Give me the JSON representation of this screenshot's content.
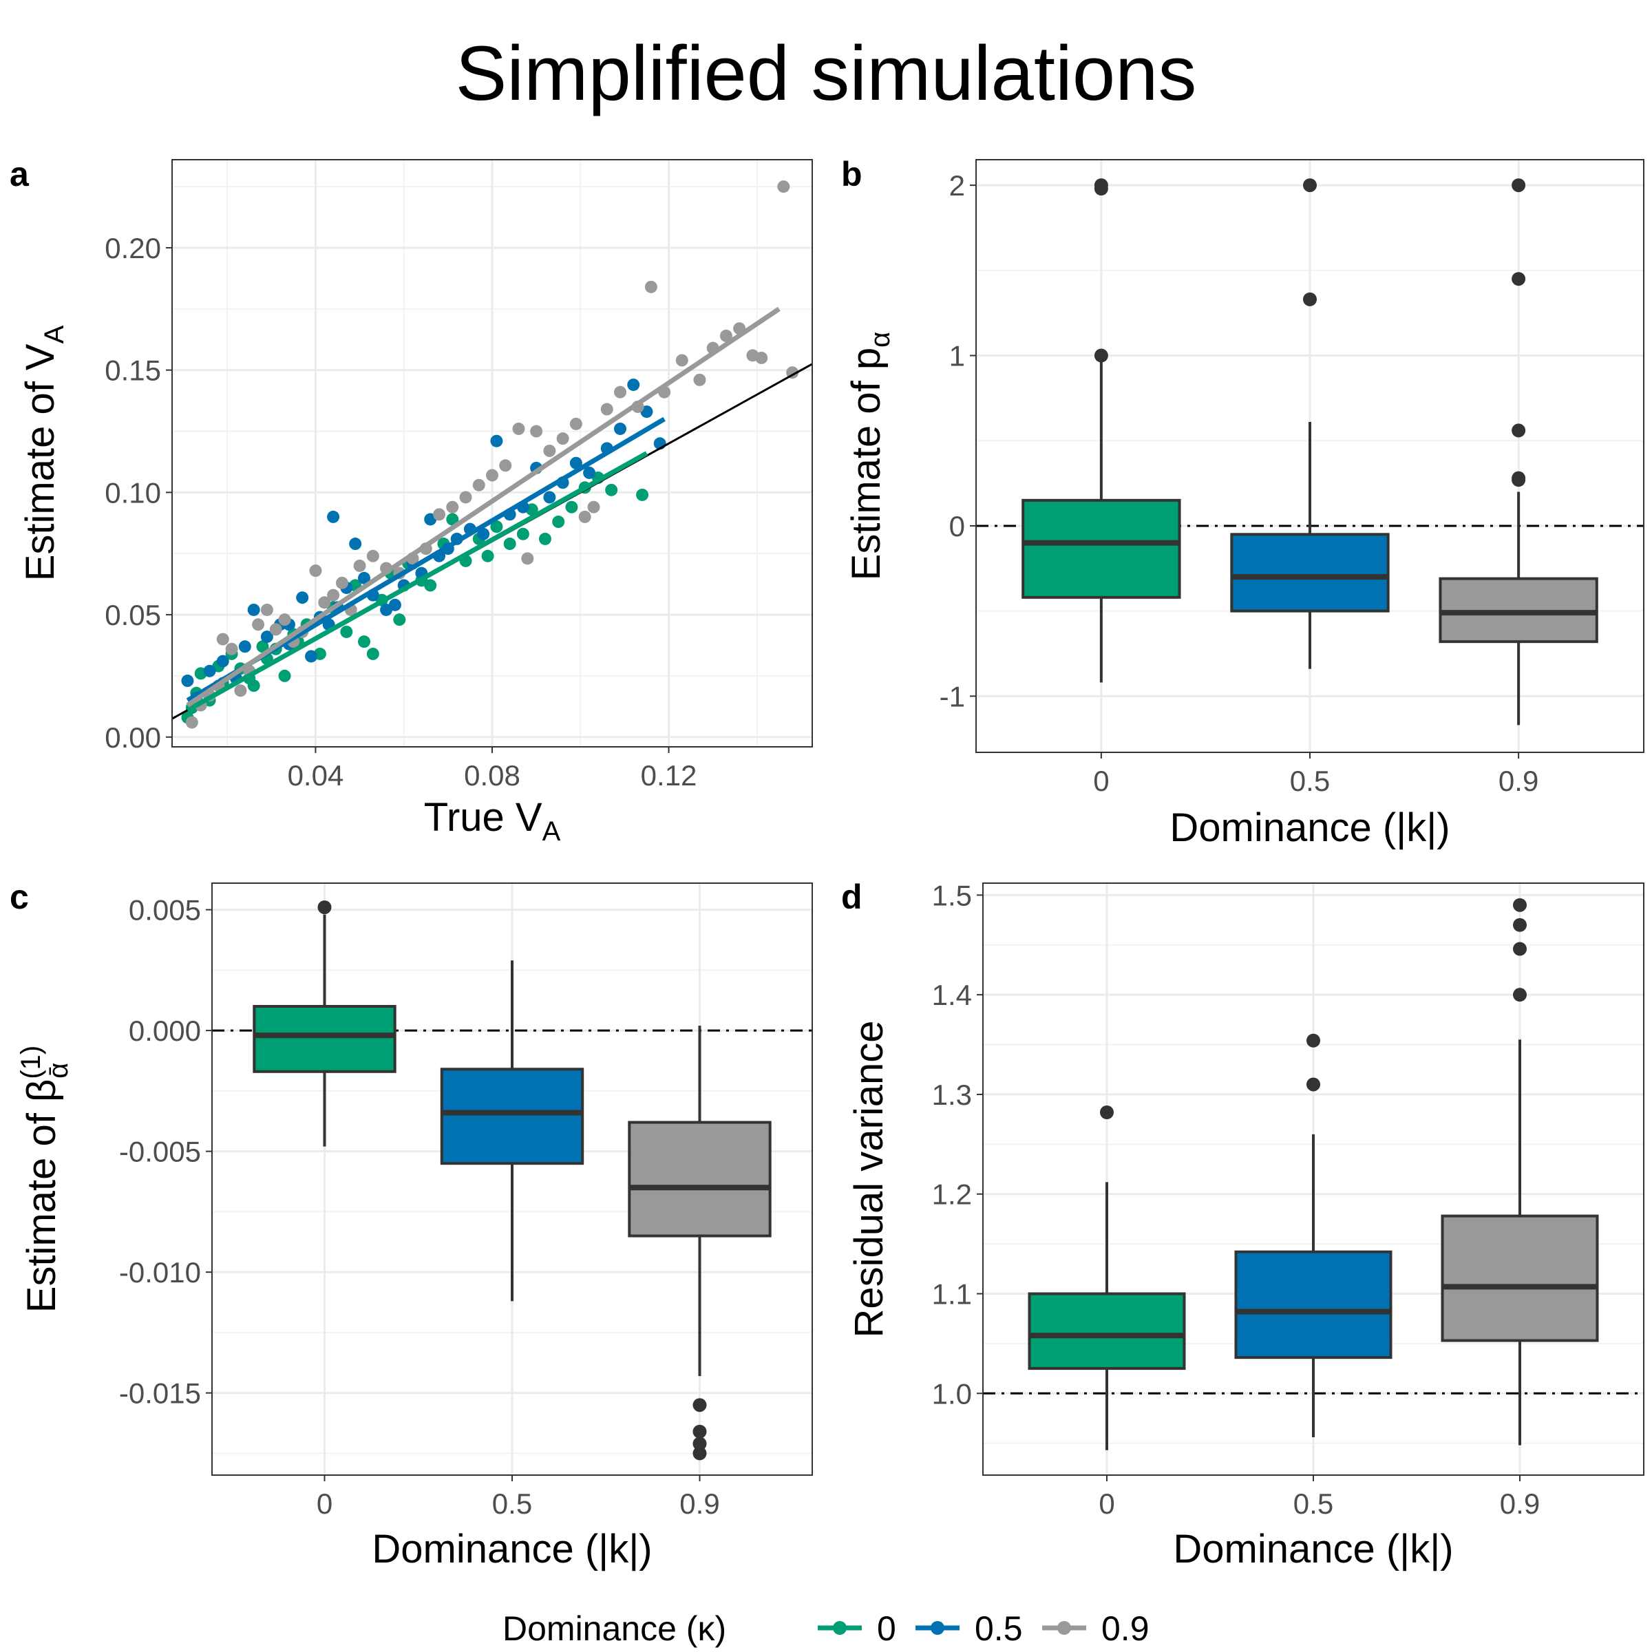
{
  "figure": {
    "title": "Simplified simulations",
    "colors": {
      "k0": "#009E73",
      "k05": "#0072B2",
      "k09": "#999999",
      "outlier": "#333333",
      "box_line": "#333333"
    },
    "legend": {
      "title": "Dominance (κ)",
      "items": [
        {
          "label": "0",
          "color": "#009E73"
        },
        {
          "label": "0.5",
          "color": "#0072B2"
        },
        {
          "label": "0.9",
          "color": "#999999"
        }
      ]
    }
  },
  "chart_data": [
    {
      "panel": "a",
      "type": "scatter",
      "xlabel": "True V",
      "xlabel_sub": "A",
      "ylabel": "Estimate of V",
      "ylabel_sub": "A",
      "xlim": [
        0.0075,
        0.1525
      ],
      "ylim": [
        -0.004,
        0.236
      ],
      "xticks": [
        0.04,
        0.08,
        0.12
      ],
      "xtick_labels": [
        "0.04",
        "0.08",
        "0.12"
      ],
      "yticks": [
        0.0,
        0.05,
        0.1,
        0.15,
        0.2
      ],
      "ytick_labels": [
        "0.00",
        "0.05",
        "0.10",
        "0.15",
        "0.20"
      ],
      "identity_line": {
        "slope": 1,
        "intercept": 0
      },
      "series": [
        {
          "name": "0",
          "color": "#009E73",
          "fit": {
            "x": [
              0.011,
              0.115
            ],
            "y": [
              0.011,
              0.116
            ]
          },
          "points": [
            [
              0.011,
              0.008
            ],
            [
              0.012,
              0.012
            ],
            [
              0.013,
              0.018
            ],
            [
              0.014,
              0.026
            ],
            [
              0.016,
              0.015
            ],
            [
              0.018,
              0.029
            ],
            [
              0.019,
              0.022
            ],
            [
              0.021,
              0.034
            ],
            [
              0.023,
              0.028
            ],
            [
              0.025,
              0.024
            ],
            [
              0.026,
              0.021
            ],
            [
              0.028,
              0.037
            ],
            [
              0.029,
              0.032
            ],
            [
              0.031,
              0.036
            ],
            [
              0.033,
              0.025
            ],
            [
              0.035,
              0.042
            ],
            [
              0.036,
              0.039
            ],
            [
              0.038,
              0.046
            ],
            [
              0.041,
              0.034
            ],
            [
              0.044,
              0.053
            ],
            [
              0.047,
              0.043
            ],
            [
              0.049,
              0.062
            ],
            [
              0.051,
              0.039
            ],
            [
              0.053,
              0.034
            ],
            [
              0.055,
              0.056
            ],
            [
              0.057,
              0.067
            ],
            [
              0.059,
              0.048
            ],
            [
              0.061,
              0.071
            ],
            [
              0.064,
              0.064
            ],
            [
              0.066,
              0.062
            ],
            [
              0.069,
              0.079
            ],
            [
              0.071,
              0.089
            ],
            [
              0.074,
              0.072
            ],
            [
              0.077,
              0.081
            ],
            [
              0.079,
              0.074
            ],
            [
              0.081,
              0.086
            ],
            [
              0.084,
              0.079
            ],
            [
              0.087,
              0.083
            ],
            [
              0.089,
              0.093
            ],
            [
              0.092,
              0.081
            ],
            [
              0.095,
              0.088
            ],
            [
              0.098,
              0.094
            ],
            [
              0.101,
              0.102
            ],
            [
              0.104,
              0.106
            ],
            [
              0.107,
              0.101
            ],
            [
              0.114,
              0.099
            ]
          ]
        },
        {
          "name": "0.5",
          "color": "#0072B2",
          "fit": {
            "x": [
              0.011,
              0.119
            ],
            "y": [
              0.015,
              0.13
            ]
          },
          "points": [
            [
              0.011,
              0.023
            ],
            [
              0.013,
              0.016
            ],
            [
              0.016,
              0.027
            ],
            [
              0.019,
              0.031
            ],
            [
              0.022,
              0.024
            ],
            [
              0.024,
              0.037
            ],
            [
              0.026,
              0.052
            ],
            [
              0.029,
              0.041
            ],
            [
              0.032,
              0.046
            ],
            [
              0.034,
              0.038
            ],
            [
              0.037,
              0.057
            ],
            [
              0.039,
              0.033
            ],
            [
              0.041,
              0.049
            ],
            [
              0.043,
              0.046
            ],
            [
              0.045,
              0.053
            ],
            [
              0.047,
              0.061
            ],
            [
              0.049,
              0.079
            ],
            [
              0.051,
              0.065
            ],
            [
              0.053,
              0.058
            ],
            [
              0.056,
              0.052
            ],
            [
              0.058,
              0.054
            ],
            [
              0.06,
              0.062
            ],
            [
              0.062,
              0.071
            ],
            [
              0.064,
              0.067
            ],
            [
              0.066,
              0.089
            ],
            [
              0.068,
              0.074
            ],
            [
              0.07,
              0.077
            ],
            [
              0.072,
              0.081
            ],
            [
              0.075,
              0.085
            ],
            [
              0.078,
              0.083
            ],
            [
              0.081,
              0.121
            ],
            [
              0.084,
              0.091
            ],
            [
              0.087,
              0.094
            ],
            [
              0.09,
              0.11
            ],
            [
              0.093,
              0.098
            ],
            [
              0.096,
              0.104
            ],
            [
              0.099,
              0.112
            ],
            [
              0.102,
              0.108
            ],
            [
              0.106,
              0.118
            ],
            [
              0.109,
              0.126
            ],
            [
              0.112,
              0.144
            ],
            [
              0.115,
              0.133
            ],
            [
              0.118,
              0.12
            ],
            [
              0.044,
              0.09
            ],
            [
              0.034,
              0.046
            ]
          ]
        },
        {
          "name": "0.9",
          "color": "#999999",
          "fit": {
            "x": [
              0.011,
              0.145
            ],
            "y": [
              0.013,
              0.175
            ]
          },
          "points": [
            [
              0.012,
              0.006
            ],
            [
              0.014,
              0.013
            ],
            [
              0.016,
              0.017
            ],
            [
              0.018,
              0.021
            ],
            [
              0.019,
              0.04
            ],
            [
              0.021,
              0.036
            ],
            [
              0.023,
              0.019
            ],
            [
              0.025,
              0.027
            ],
            [
              0.027,
              0.046
            ],
            [
              0.029,
              0.052
            ],
            [
              0.031,
              0.044
            ],
            [
              0.033,
              0.048
            ],
            [
              0.035,
              0.039
            ],
            [
              0.037,
              0.043
            ],
            [
              0.04,
              0.068
            ],
            [
              0.042,
              0.055
            ],
            [
              0.044,
              0.058
            ],
            [
              0.046,
              0.063
            ],
            [
              0.048,
              0.052
            ],
            [
              0.05,
              0.07
            ],
            [
              0.053,
              0.074
            ],
            [
              0.056,
              0.069
            ],
            [
              0.059,
              0.067
            ],
            [
              0.062,
              0.073
            ],
            [
              0.065,
              0.077
            ],
            [
              0.068,
              0.091
            ],
            [
              0.071,
              0.094
            ],
            [
              0.074,
              0.098
            ],
            [
              0.077,
              0.103
            ],
            [
              0.08,
              0.107
            ],
            [
              0.083,
              0.111
            ],
            [
              0.086,
              0.126
            ],
            [
              0.088,
              0.073
            ],
            [
              0.09,
              0.125
            ],
            [
              0.093,
              0.117
            ],
            [
              0.096,
              0.122
            ],
            [
              0.099,
              0.128
            ],
            [
              0.101,
              0.09
            ],
            [
              0.103,
              0.094
            ],
            [
              0.106,
              0.134
            ],
            [
              0.109,
              0.141
            ],
            [
              0.113,
              0.135
            ],
            [
              0.116,
              0.184
            ],
            [
              0.119,
              0.141
            ],
            [
              0.123,
              0.154
            ],
            [
              0.127,
              0.146
            ],
            [
              0.13,
              0.159
            ],
            [
              0.133,
              0.164
            ],
            [
              0.136,
              0.167
            ],
            [
              0.139,
              0.156
            ],
            [
              0.141,
              0.155
            ],
            [
              0.146,
              0.225
            ],
            [
              0.148,
              0.149
            ]
          ]
        }
      ]
    },
    {
      "panel": "b",
      "type": "box",
      "xlabel": "Dominance (|k|)",
      "ylabel": "Estimate of p",
      "ylabel_sub": "α",
      "ylim": [
        -1.33,
        2.15
      ],
      "yticks": [
        -1,
        0,
        1,
        2
      ],
      "ytick_labels": [
        "-1",
        "0",
        "1",
        "2"
      ],
      "reference_line": 0,
      "categories": [
        "0",
        "0.5",
        "0.9"
      ],
      "boxes": [
        {
          "category": "0",
          "color": "#009E73",
          "lower_whisker": -0.92,
          "q1": -0.42,
          "median": -0.1,
          "q3": 0.15,
          "upper_whisker": 0.97,
          "outliers": [
            1.0,
            1.98,
            2.0
          ]
        },
        {
          "category": "0.5",
          "color": "#0072B2",
          "lower_whisker": -0.84,
          "q1": -0.5,
          "median": -0.3,
          "q3": -0.05,
          "upper_whisker": 0.61,
          "outliers": [
            1.33,
            2.0
          ]
        },
        {
          "category": "0.9",
          "color": "#999999",
          "lower_whisker": -1.17,
          "q1": -0.68,
          "median": -0.51,
          "q3": -0.31,
          "upper_whisker": 0.2,
          "outliers": [
            0.27,
            0.28,
            0.56,
            1.45,
            2.0
          ]
        }
      ]
    },
    {
      "panel": "c",
      "type": "box",
      "xlabel": "Dominance (|k|)",
      "ylabel": "Estimate of β",
      "ylabel_sup": "(1)",
      "ylabel_sub": "ᾱ",
      "ylim": [
        -0.0184,
        0.0061
      ],
      "yticks": [
        -0.015,
        -0.01,
        -0.005,
        0.0,
        0.005
      ],
      "ytick_labels": [
        "-0.015",
        "-0.010",
        "-0.005",
        "0.000",
        "0.005"
      ],
      "reference_line": 0,
      "categories": [
        "0",
        "0.5",
        "0.9"
      ],
      "boxes": [
        {
          "category": "0",
          "color": "#009E73",
          "lower_whisker": -0.0048,
          "q1": -0.0017,
          "median": -0.0002,
          "q3": 0.001,
          "upper_whisker": 0.0048,
          "outliers": [
            0.0051
          ]
        },
        {
          "category": "0.5",
          "color": "#0072B2",
          "lower_whisker": -0.0112,
          "q1": -0.0055,
          "median": -0.0034,
          "q3": -0.0016,
          "upper_whisker": 0.0029,
          "outliers": []
        },
        {
          "category": "0.9",
          "color": "#999999",
          "lower_whisker": -0.0143,
          "q1": -0.0085,
          "median": -0.0065,
          "q3": -0.0038,
          "upper_whisker": 0.0002,
          "outliers": [
            -0.0155,
            -0.0166,
            -0.0171,
            -0.0175
          ]
        }
      ]
    },
    {
      "panel": "d",
      "type": "box",
      "xlabel": "Dominance (|k|)",
      "ylabel": "Residual variance",
      "ylim": [
        0.918,
        1.512
      ],
      "yticks": [
        1.0,
        1.1,
        1.2,
        1.3,
        1.4,
        1.5
      ],
      "ytick_labels": [
        "1.0",
        "1.1",
        "1.2",
        "1.3",
        "1.4",
        "1.5"
      ],
      "reference_line": 1.0,
      "categories": [
        "0",
        "0.5",
        "0.9"
      ],
      "boxes": [
        {
          "category": "0",
          "color": "#009E73",
          "lower_whisker": 0.943,
          "q1": 1.025,
          "median": 1.058,
          "q3": 1.1,
          "upper_whisker": 1.212,
          "outliers": [
            1.282
          ]
        },
        {
          "category": "0.5",
          "color": "#0072B2",
          "lower_whisker": 0.956,
          "q1": 1.036,
          "median": 1.082,
          "q3": 1.142,
          "upper_whisker": 1.26,
          "outliers": [
            1.31,
            1.354
          ]
        },
        {
          "category": "0.9",
          "color": "#999999",
          "lower_whisker": 0.948,
          "q1": 1.053,
          "median": 1.107,
          "q3": 1.178,
          "upper_whisker": 1.355,
          "outliers": [
            1.4,
            1.446,
            1.47,
            1.49
          ]
        }
      ]
    }
  ]
}
